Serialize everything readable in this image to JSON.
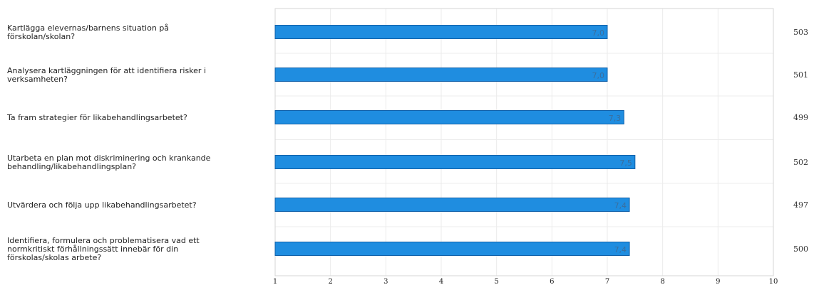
{
  "chart_data": {
    "type": "bar",
    "orientation": "horizontal",
    "categories": [
      [
        "Kartlägga elevernas/barnens situation på",
        "förskolan/skolan?"
      ],
      [
        "Analysera kartläggningen för att identifiera risker i",
        "verksamheten?"
      ],
      [
        "Ta fram strategier för likabehandlingsarbetet?"
      ],
      [
        "Utarbeta en plan mot diskriminering och krankande",
        "behandling/likabehandlingsplan?"
      ],
      [
        "Utvärdera och följa upp likabehandlingsarbetet?"
      ],
      [
        "Identifiera, formulera och problematisera vad ett",
        "normkritiskt förhållningssätt innebär för din",
        "förskolas/skolas arbete?"
      ]
    ],
    "values": [
      7.0,
      7.0,
      7.3,
      7.5,
      7.4,
      7.4
    ],
    "value_labels": [
      "7,0",
      "7,0",
      "7,3",
      "7,5",
      "7,4",
      "7,4"
    ],
    "counts": [
      "503",
      "501",
      "499",
      "502",
      "497",
      "500"
    ],
    "xlim": [
      1,
      10
    ],
    "xticks": [
      "1",
      "2",
      "3",
      "4",
      "5",
      "6",
      "7",
      "8",
      "9",
      "10"
    ],
    "grid": true,
    "bar_color": "#1f8de0",
    "bar_edge_color": "#0f5fa8"
  }
}
